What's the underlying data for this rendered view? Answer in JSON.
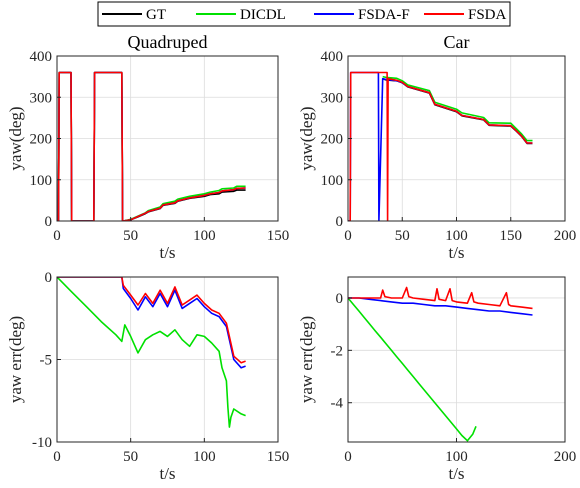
{
  "legend": {
    "items": [
      {
        "label": "GT",
        "color": "#000000"
      },
      {
        "label": "DICDL",
        "color": "#00e000"
      },
      {
        "label": "FSDA-F",
        "color": "#0000ff"
      },
      {
        "label": "FSDA",
        "color": "#ff0000"
      }
    ]
  },
  "chart_data": [
    {
      "type": "line",
      "title": "Quadruped",
      "xlabel": "t/s",
      "ylabel": "yaw(deg)",
      "xlim": [
        0,
        150
      ],
      "ylim": [
        0,
        400
      ],
      "xticks": [
        0,
        50,
        100,
        150
      ],
      "yticks": [
        0,
        100,
        200,
        300,
        400
      ],
      "grid": true,
      "series": [
        {
          "name": "GT",
          "color": "#000000",
          "x": [
            0,
            1,
            1.5,
            9.5,
            10,
            25,
            25.5,
            44,
            44.5,
            45,
            50,
            55,
            60,
            62,
            70,
            72,
            80,
            82,
            90,
            100,
            104,
            110,
            112,
            120,
            122,
            128
          ],
          "y": [
            0,
            0,
            360,
            360,
            0,
            0,
            360,
            360,
            0,
            0,
            3,
            10,
            18,
            22,
            30,
            38,
            43,
            48,
            55,
            60,
            64,
            66,
            70,
            72,
            75,
            75
          ]
        },
        {
          "name": "DICDL",
          "color": "#00e000",
          "x": [
            0,
            1,
            1.5,
            9.5,
            10,
            25,
            25.5,
            44,
            44.5,
            45,
            50,
            55,
            60,
            62,
            70,
            72,
            80,
            82,
            90,
            100,
            104,
            110,
            112,
            120,
            122,
            128
          ],
          "y": [
            0,
            0,
            360,
            360,
            0,
            0,
            360,
            360,
            0,
            0,
            4,
            12,
            20,
            25,
            34,
            42,
            48,
            53,
            60,
            66,
            70,
            74,
            78,
            80,
            84,
            84
          ]
        },
        {
          "name": "FSDA-F",
          "color": "#0000ff",
          "x": [
            0,
            1,
            1.5,
            9.5,
            10,
            25,
            25.5,
            44,
            44.5,
            45,
            50,
            55,
            60,
            62,
            70,
            72,
            80,
            82,
            90,
            100,
            104,
            110,
            112,
            120,
            122,
            128
          ],
          "y": [
            0,
            0,
            360,
            360,
            0,
            0,
            360,
            360,
            0,
            0,
            3,
            11,
            19,
            23,
            31,
            39,
            44,
            49,
            56,
            62,
            66,
            69,
            73,
            76,
            79,
            80
          ]
        },
        {
          "name": "FSDA",
          "color": "#ff0000",
          "x": [
            0,
            1,
            1.5,
            9.5,
            10,
            25,
            25.5,
            44,
            44.5,
            45,
            50,
            55,
            60,
            62,
            70,
            72,
            80,
            82,
            90,
            100,
            104,
            110,
            112,
            120,
            122,
            128
          ],
          "y": [
            0,
            0,
            360,
            360,
            0,
            0,
            360,
            360,
            0,
            0,
            3,
            11,
            19,
            23,
            31,
            39,
            44,
            49,
            56,
            62,
            66,
            69,
            73,
            76,
            79,
            80
          ]
        }
      ]
    },
    {
      "type": "line",
      "title": "Car",
      "xlabel": "t/s",
      "ylabel": "yaw(deg)",
      "xlim": [
        0,
        200
      ],
      "ylim": [
        0,
        400
      ],
      "xticks": [
        0,
        50,
        100,
        150,
        200
      ],
      "yticks": [
        0,
        100,
        200,
        300,
        400
      ],
      "grid": true,
      "series": [
        {
          "name": "GT",
          "color": "#000000",
          "x": [
            32,
            35,
            45,
            50,
            55,
            75,
            80,
            100,
            105,
            125,
            130,
            150,
            155,
            160,
            165,
            170
          ],
          "y": [
            345,
            342,
            340,
            335,
            325,
            310,
            282,
            265,
            255,
            245,
            232,
            230,
            218,
            205,
            188,
            188
          ]
        },
        {
          "name": "DICDL",
          "color": "#00e000",
          "x": [
            32,
            35,
            45,
            50,
            55,
            75,
            80,
            100,
            105,
            125,
            130,
            150,
            155,
            160,
            165,
            170
          ],
          "y": [
            350,
            348,
            346,
            340,
            330,
            316,
            288,
            271,
            262,
            251,
            238,
            237,
            224,
            211,
            195,
            195
          ]
        },
        {
          "name": "FSDA-F",
          "color": "#0000ff",
          "x": [
            0,
            2,
            2.5,
            28,
            28.5,
            32,
            35,
            45,
            50,
            55,
            75,
            80,
            100,
            105,
            125,
            130,
            150,
            155,
            160,
            165,
            170
          ],
          "y": [
            0,
            0,
            360,
            360,
            0,
            345,
            343,
            340,
            335,
            326,
            311,
            283,
            266,
            256,
            246,
            233,
            231,
            219,
            206,
            189,
            189
          ]
        },
        {
          "name": "FSDA",
          "color": "#ff0000",
          "x": [
            0,
            2,
            2.5,
            36,
            36.5,
            37,
            45,
            50,
            55,
            75,
            80,
            100,
            105,
            125,
            130,
            150,
            155,
            160,
            165,
            170
          ],
          "y": [
            0,
            0,
            360,
            360,
            0,
            345,
            341,
            336,
            326,
            311,
            283,
            266,
            256,
            246,
            233,
            231,
            219,
            206,
            189,
            189
          ]
        }
      ]
    },
    {
      "type": "line",
      "xlabel": "t/s",
      "ylabel": "yaw err(deg)",
      "xlim": [
        0,
        150
      ],
      "ylim": [
        -10,
        0
      ],
      "xticks": [
        0,
        50,
        100,
        150
      ],
      "yticks": [
        -10,
        -5,
        0
      ],
      "grid": true,
      "series": [
        {
          "name": "DICDL",
          "color": "#00e000",
          "x": [
            0,
            10,
            20,
            30,
            40,
            44,
            46,
            50,
            55,
            60,
            65,
            70,
            75,
            80,
            85,
            90,
            95,
            100,
            105,
            110,
            112,
            115,
            116,
            117,
            118,
            120,
            125,
            128
          ],
          "y": [
            0,
            -0.9,
            -1.8,
            -2.7,
            -3.5,
            -3.9,
            -2.9,
            -3.6,
            -4.6,
            -3.8,
            -3.5,
            -3.3,
            -3.6,
            -3.2,
            -3.8,
            -4.2,
            -3.5,
            -3.6,
            -4.0,
            -4.5,
            -5.5,
            -6.3,
            -7.9,
            -9.1,
            -8.5,
            -8.0,
            -8.3,
            -8.4
          ]
        },
        {
          "name": "FSDA-F",
          "color": "#0000ff",
          "x": [
            0,
            44,
            45,
            50,
            55,
            60,
            65,
            70,
            75,
            80,
            85,
            90,
            95,
            100,
            105,
            110,
            115,
            120,
            125,
            128
          ],
          "y": [
            0,
            0,
            -0.7,
            -1.3,
            -2.0,
            -1.2,
            -1.8,
            -1.0,
            -1.8,
            -0.8,
            -1.9,
            -1.6,
            -1.3,
            -1.8,
            -2.2,
            -2.4,
            -3.0,
            -5.0,
            -5.5,
            -5.4
          ]
        },
        {
          "name": "FSDA",
          "color": "#ff0000",
          "x": [
            0,
            44,
            45,
            50,
            55,
            60,
            65,
            70,
            75,
            80,
            85,
            90,
            95,
            100,
            105,
            110,
            115,
            120,
            125,
            128
          ],
          "y": [
            0,
            0,
            -0.5,
            -1.1,
            -1.7,
            -1.0,
            -1.6,
            -0.8,
            -1.6,
            -0.6,
            -1.7,
            -1.4,
            -1.1,
            -1.6,
            -2.0,
            -2.2,
            -2.8,
            -4.8,
            -5.2,
            -5.1
          ]
        }
      ]
    },
    {
      "type": "line",
      "xlabel": "t/s",
      "ylabel": "yaw err(deg)",
      "xlim": [
        0,
        200
      ],
      "ylim": [
        -5.5,
        0.8
      ],
      "xticks": [
        0,
        100,
        200
      ],
      "yticks": [
        -4,
        -2,
        0
      ],
      "grid": true,
      "series": [
        {
          "name": "DICDL",
          "color": "#00e000",
          "x": [
            0,
            5,
            10,
            15,
            20,
            25,
            30,
            35,
            40,
            45,
            50,
            55,
            60,
            65,
            70,
            75,
            80,
            85,
            90,
            95,
            100,
            105,
            110,
            115,
            118
          ],
          "y": [
            0,
            -0.25,
            -0.5,
            -0.75,
            -1.0,
            -1.25,
            -1.5,
            -1.75,
            -2.0,
            -2.25,
            -2.5,
            -2.75,
            -3.0,
            -3.25,
            -3.5,
            -3.75,
            -4.0,
            -4.25,
            -4.5,
            -4.75,
            -5.0,
            -5.25,
            -5.45,
            -5.2,
            -4.9
          ]
        },
        {
          "name": "FSDA-F",
          "color": "#0000ff",
          "x": [
            0,
            10,
            20,
            30,
            40,
            50,
            60,
            70,
            80,
            90,
            100,
            110,
            120,
            130,
            140,
            150,
            160,
            170
          ],
          "y": [
            0,
            0,
            -0.05,
            -0.1,
            -0.15,
            -0.2,
            -0.2,
            -0.25,
            -0.3,
            -0.3,
            -0.35,
            -0.4,
            -0.45,
            -0.5,
            -0.5,
            -0.55,
            -0.6,
            -0.65
          ]
        },
        {
          "name": "FSDA",
          "color": "#ff0000",
          "x": [
            0,
            10,
            20,
            30,
            32,
            34,
            40,
            50,
            54,
            56,
            60,
            70,
            80,
            82,
            84,
            90,
            94,
            96,
            100,
            110,
            114,
            116,
            120,
            130,
            140,
            146,
            148,
            150,
            160,
            170
          ],
          "y": [
            0,
            0,
            0,
            0,
            0.3,
            0.05,
            0,
            0,
            0.4,
            0.05,
            0,
            -0.05,
            -0.1,
            0.35,
            -0.05,
            -0.1,
            0.35,
            -0.1,
            -0.15,
            -0.2,
            0.2,
            -0.15,
            -0.2,
            -0.25,
            -0.3,
            0.2,
            -0.25,
            -0.3,
            -0.35,
            -0.4
          ]
        }
      ]
    }
  ]
}
